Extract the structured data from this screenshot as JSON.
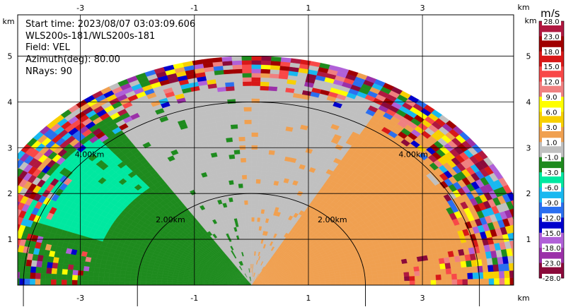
{
  "info": {
    "start_time": "Start time: 2023/08/07 03:03:09.606",
    "scan": "WLS200s-181/WLS200s-181",
    "field": "Field: VEL",
    "azimuth": "Azimuth(deg): 80.00",
    "nrays": "NRays: 90"
  },
  "chart_data": {
    "type": "heatmap",
    "subtype": "doppler-lidar RHI, velocity field",
    "x_unit": "km",
    "y_unit": "km",
    "xlim": [
      -4.1,
      4.6
    ],
    "ylim": [
      0,
      5.9
    ],
    "x_ticks": [
      -3,
      -1,
      1,
      3
    ],
    "y_ticks": [
      1,
      2,
      3,
      4,
      5
    ],
    "x_tick_labels": [
      "-3",
      "-1",
      "1",
      "3"
    ],
    "y_tick_labels": [
      "1",
      "2",
      "3",
      "4",
      "5"
    ],
    "grid": true,
    "range_rings": [
      {
        "radius_km": 2.0,
        "label": "2.00km"
      },
      {
        "radius_km": 4.0,
        "label": "4.00km"
      }
    ],
    "max_range_km": 5.0,
    "colorbar": {
      "unit": "m/s",
      "labels": [
        "-28.0",
        "-23.0",
        "-18.0",
        "-15.0",
        "-12.0",
        "-9.0",
        "-6.0",
        "-3.0",
        "-1.0",
        "1.0",
        "3.0",
        "6.0",
        "9.0",
        "12.0",
        "15.0",
        "18.0",
        "23.0",
        "28.0"
      ],
      "colors": [
        "#8b0a3a",
        "#9b30a8",
        "#b060d8",
        "#0000cc",
        "#2a6ff0",
        "#18b8f0",
        "#00e8a0",
        "#1e8b1e",
        "#c0c0c0",
        "#f0a050",
        "#f8d000",
        "#ffff00",
        "#f08080",
        "#f84848",
        "#d81818",
        "#a00000",
        "#b01840"
      ]
    },
    "regions": [
      {
        "name": "near-field receding",
        "velocity_m_s_range": [
          -3.0,
          -1.0
        ],
        "color": "#1e8b1e",
        "azimuth_span_deg": [
          125,
          180
        ]
      },
      {
        "name": "near-field calm",
        "velocity_m_s_range": [
          -1.0,
          1.0
        ],
        "color": "#c0c0c0",
        "azimuth_span_deg": [
          60,
          125
        ]
      },
      {
        "name": "near-field approaching",
        "velocity_m_s_range": [
          1.0,
          3.0
        ],
        "color": "#f0a050",
        "azimuth_span_deg": [
          0,
          60
        ]
      },
      {
        "name": "upper-left jet",
        "velocity_m_s_range": [
          -6.0,
          -3.0
        ],
        "color": "#00e8a0",
        "azimuth_span_deg": [
          130,
          160
        ]
      },
      {
        "name": "far-range noise",
        "velocity_m_s_range": [
          -28.0,
          28.0
        ],
        "radius_km_range": [
          4.2,
          5.0
        ]
      }
    ]
  }
}
